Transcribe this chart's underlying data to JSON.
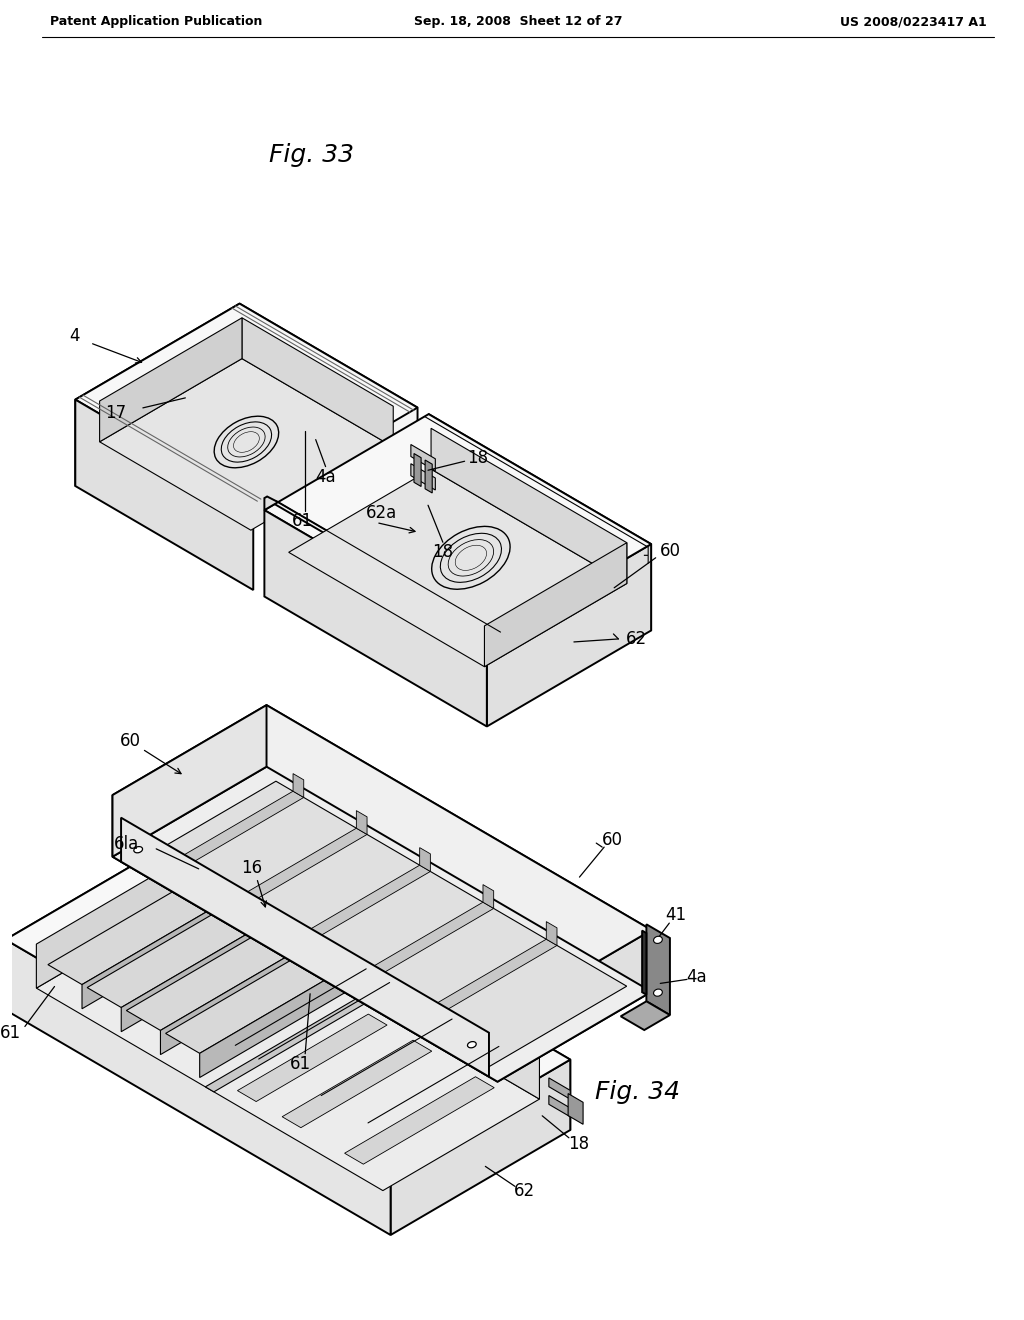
{
  "background_color": "#ffffff",
  "header_left": "Patent Application Publication",
  "header_center": "Sep. 18, 2008  Sheet 12 of 27",
  "header_right": "US 2008/0223417 A1",
  "fig33_label": "Fig. 33",
  "fig34_label": "Fig. 34",
  "line_color": "#000000",
  "text_color": "#000000",
  "lw": 1.4,
  "lw_thin": 0.8,
  "lw_thick": 2.0
}
